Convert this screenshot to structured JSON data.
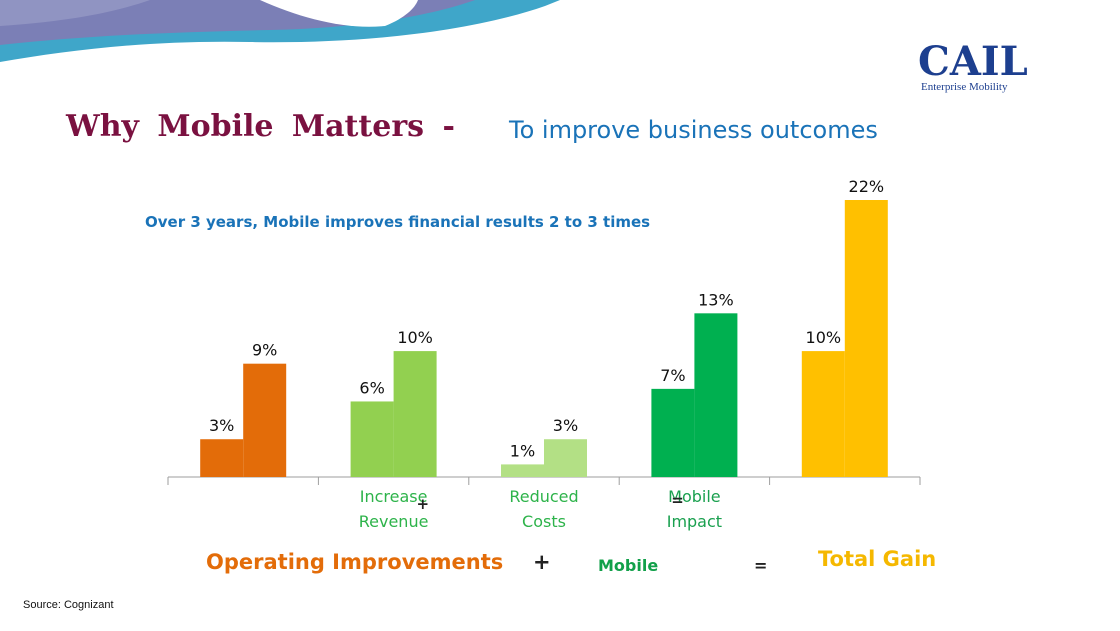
{
  "logo": {
    "name": "CAIL",
    "tagline": "Enterprise Mobility"
  },
  "title": {
    "main": "Why Mobile Matters -",
    "sub": "To improve business outcomes"
  },
  "summary": {
    "operating": "Operating Improvements",
    "plus": "+",
    "mobile": "Mobile",
    "equals": "=",
    "total": "Total Gain"
  },
  "source": "Source: Cognizant",
  "colors": {
    "operating": "#e36c09",
    "revenue": "#92d050",
    "costs": "#b3e085",
    "mobile": "#00b050",
    "total": "#ffc000",
    "title": "#7a1140",
    "accent": "#1a73b8"
  },
  "chart_data": {
    "type": "bar",
    "title": "",
    "note": "Over 3 years,  Mobile improves  financial  results  2 to 3 times",
    "ylim": [
      0,
      22
    ],
    "groups": [
      {
        "label": "",
        "color": "operating",
        "values": [
          3,
          9
        ],
        "labels": [
          "3%",
          "9%"
        ]
      },
      {
        "label": "Increase Revenue",
        "label_lines": [
          "Increase",
          "Revenue"
        ],
        "color": "revenue",
        "values": [
          6,
          10
        ],
        "labels": [
          "6%",
          "10%"
        ]
      },
      {
        "label": "Reduced Costs",
        "label_lines": [
          "Reduced",
          "Costs"
        ],
        "color": "costs",
        "values": [
          1,
          3
        ],
        "labels": [
          "1%",
          "3%"
        ]
      },
      {
        "label": "Mobile Impact",
        "label_lines": [
          "Mobile",
          "Impact"
        ],
        "color": "mobile",
        "values": [
          7,
          13
        ],
        "labels": [
          "7%",
          "13%"
        ]
      },
      {
        "label": "",
        "color": "total",
        "values": [
          10,
          22
        ],
        "labels": [
          "10%",
          "22%"
        ]
      }
    ],
    "operators": [
      {
        "after_group": 1,
        "symbol": "+"
      },
      {
        "after_group": 2,
        "symbol": "="
      }
    ]
  }
}
